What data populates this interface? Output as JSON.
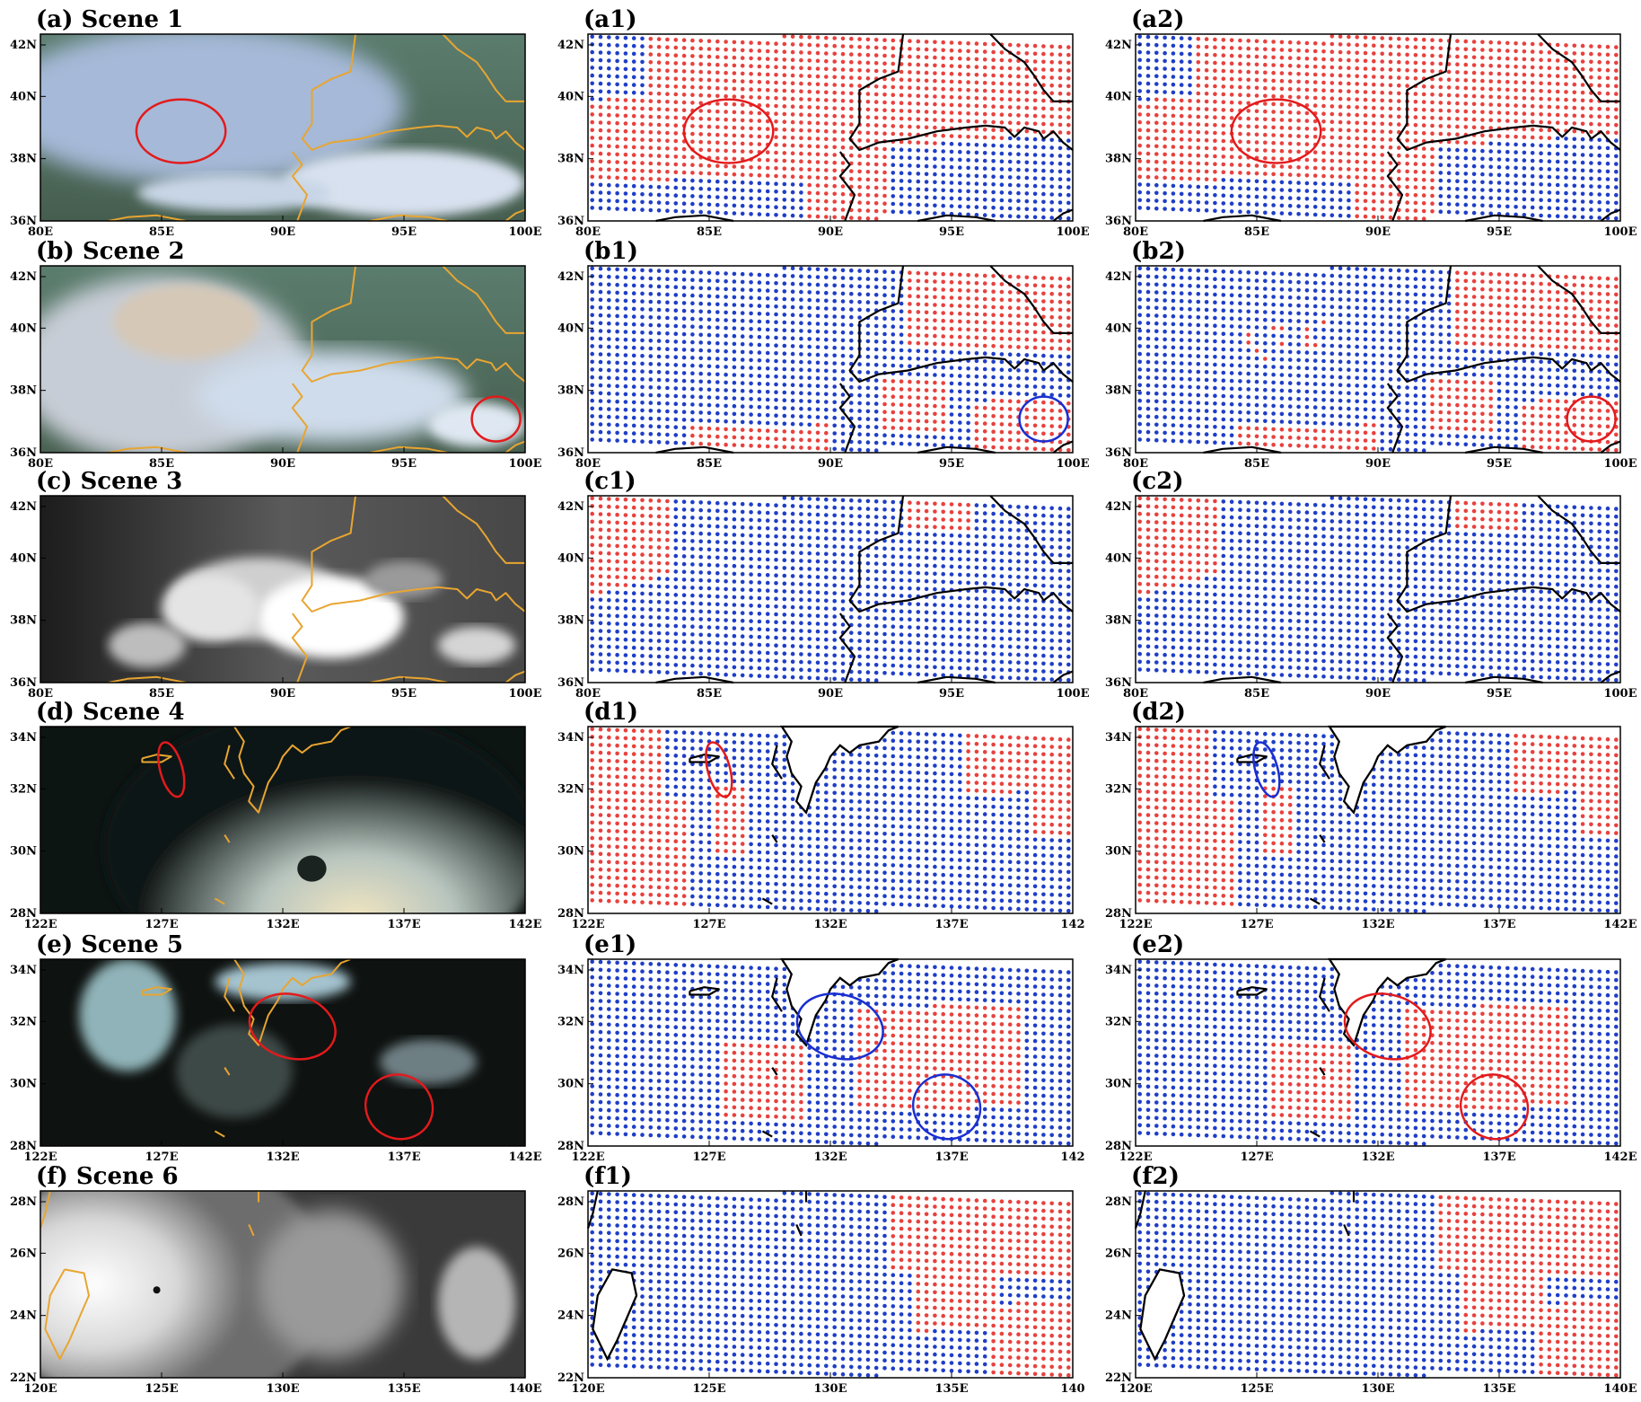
{
  "figure": {
    "colors": {
      "red_dot": "#e8413e",
      "blue_dot": "#1f3ec7",
      "boundary_orange": "#e8a531",
      "boundary_black": "#000000",
      "circle_red": "#e31a1c",
      "circle_blue": "#1a2fd1"
    },
    "columns": [
      "satellite",
      "method1",
      "method2"
    ],
    "rows": [
      {
        "labels": [
          "(a)  Scene 1",
          "(a1)",
          "(a2)"
        ],
        "sat_type": "color",
        "region": "china",
        "yticks": [
          "42N",
          "40N",
          "38N",
          "36N"
        ],
        "xticks": [
          [
            "80E",
            "85E",
            "90E",
            "95E",
            "100E"
          ],
          [
            "80E",
            "85E",
            "90E",
            "95E",
            "100E"
          ],
          [
            "80E",
            "85E",
            "90E",
            "95E",
            "100E"
          ]
        ],
        "ellipse": [
          "red",
          "red",
          "red"
        ]
      },
      {
        "labels": [
          "(b)  Scene 2",
          "(b1)",
          "(b2)"
        ],
        "sat_type": "color",
        "region": "china",
        "yticks": [
          "42N",
          "40N",
          "38N",
          "36N"
        ],
        "xticks": [
          [
            "80E",
            "85E",
            "90E",
            "95E",
            "100E"
          ],
          [
            "80E",
            "85E",
            "90E",
            "95E",
            "100E"
          ],
          [
            "80E",
            "85E",
            "90E",
            "95E",
            "100E"
          ]
        ],
        "ellipse": [
          "red",
          "blue",
          "red"
        ]
      },
      {
        "labels": [
          "(c)  Scene 3",
          "(c1)",
          "(c2)"
        ],
        "sat_type": "gray",
        "region": "china",
        "yticks": [
          "42N",
          "40N",
          "38N",
          "36N"
        ],
        "xticks": [
          [
            "80E",
            "85E",
            "90E",
            "95E",
            "100E"
          ],
          [
            "80E",
            "85E",
            "90E",
            "95E",
            "100E"
          ],
          [
            "80E",
            "85E",
            "90E",
            "95E",
            "100E"
          ]
        ],
        "ellipse": []
      },
      {
        "labels": [
          "(d)  Scene 4",
          "(d1)",
          "(d2)"
        ],
        "sat_type": "dark",
        "region": "japan",
        "yticks": [
          "34N",
          "32N",
          "30N",
          "28N"
        ],
        "xticks": [
          [
            "122E",
            "127E",
            "132E",
            "137E",
            "142E"
          ],
          [
            "122E",
            "127E",
            "132E",
            "137E",
            "142"
          ],
          [
            "122E",
            "127E",
            "132E",
            "137E",
            "142E"
          ]
        ],
        "ellipse": [
          "red",
          "red",
          "blue"
        ]
      },
      {
        "labels": [
          "(e)  Scene 5",
          "(e1)",
          "(e2)"
        ],
        "sat_type": "dark",
        "region": "japan",
        "yticks": [
          "34N",
          "32N",
          "30N",
          "28N"
        ],
        "xticks": [
          [
            "122E",
            "127E",
            "132E",
            "137E",
            "142E"
          ],
          [
            "122E",
            "127E",
            "132E",
            "137E",
            "142"
          ],
          [
            "122E",
            "127E",
            "132E",
            "137E",
            "142E"
          ]
        ],
        "ellipse": [
          "red",
          "blue",
          "red"
        ]
      },
      {
        "labels": [
          "(f)  Scene 6",
          "(f1)",
          "(f2)"
        ],
        "sat_type": "typhoon",
        "region": "taiwan",
        "yticks": [
          "28N",
          "26N",
          "24N",
          "22N"
        ],
        "xticks": [
          [
            "120E",
            "125E",
            "130E",
            "135E",
            "140E"
          ],
          [
            "120E",
            "125E",
            "130E",
            "135E",
            "140"
          ],
          [
            "120E",
            "125E",
            "130E",
            "135E",
            "140E"
          ]
        ],
        "ellipse": []
      }
    ]
  }
}
